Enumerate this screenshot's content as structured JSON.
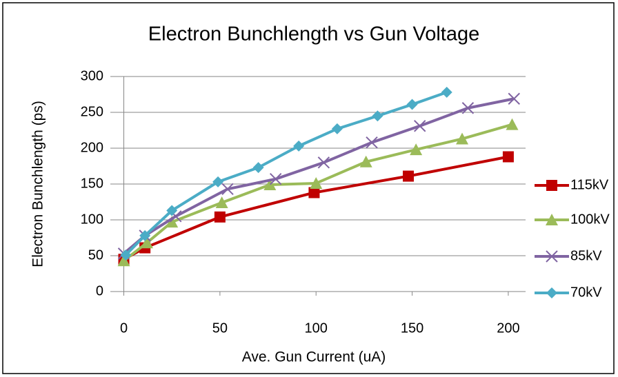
{
  "chart_data": {
    "type": "line",
    "title": "Electron Bunchlength vs Gun Voltage",
    "x_label": "Ave. Gun Current (uA)",
    "y_label": "Electron Bunchlength (ps)",
    "xlim": [
      -7,
      209
    ],
    "xticks": [
      0,
      50,
      100,
      150,
      200
    ],
    "ylim": [
      0,
      300
    ],
    "yticks": [
      0,
      50,
      100,
      150,
      200,
      250,
      300
    ],
    "grid": true,
    "legend": "right",
    "series": [
      {
        "name": "115kV",
        "color": "#c00000",
        "marker": "square",
        "x": [
          0,
          11,
          50,
          99,
          148,
          200
        ],
        "values": [
          45,
          61,
          104,
          138,
          161,
          188
        ]
      },
      {
        "name": "100kV",
        "color": "#9bbb59",
        "marker": "triangle",
        "x": [
          0,
          12,
          25,
          51,
          76,
          100,
          126,
          152,
          176,
          202
        ],
        "values": [
          43,
          68,
          97,
          124,
          149,
          151,
          181,
          198,
          213,
          233
        ]
      },
      {
        "name": "85kV",
        "color": "#8064a2",
        "marker": "x",
        "x": [
          0,
          11,
          27,
          54,
          79,
          104,
          129,
          154,
          179,
          203
        ],
        "values": [
          53,
          78,
          105,
          143,
          157,
          180,
          208,
          231,
          256,
          269
        ]
      },
      {
        "name": "70kV",
        "color": "#4bacc6",
        "marker": "diamond",
        "x": [
          1,
          11,
          25,
          49,
          70,
          91,
          111,
          132,
          150,
          168
        ],
        "values": [
          51,
          78,
          113,
          153,
          173,
          203,
          227,
          245,
          261,
          278
        ]
      }
    ]
  }
}
